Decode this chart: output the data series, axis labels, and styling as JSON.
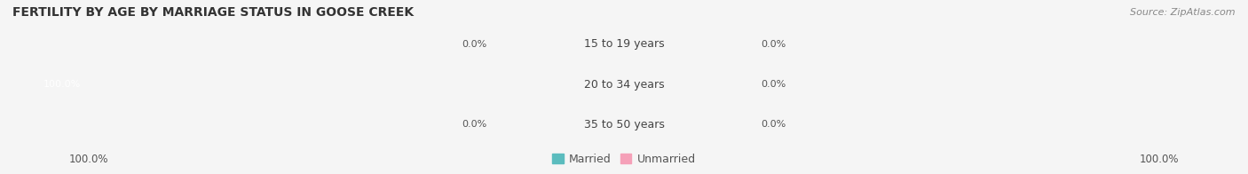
{
  "title": "FERTILITY BY AGE BY MARRIAGE STATUS IN GOOSE CREEK",
  "source": "Source: ZipAtlas.com",
  "bg_color": "#f5f5f5",
  "bar_track_color": "#e8e8e8",
  "married_color": "#5bbcbe",
  "unmarried_color": "#f5a0b8",
  "label_bg_color": "#ffffff",
  "rows": [
    {
      "label": "15 to 19 years",
      "married": 0.0,
      "unmarried": 0.0
    },
    {
      "label": "20 to 34 years",
      "married": 100.0,
      "unmarried": 0.0
    },
    {
      "label": "35 to 50 years",
      "married": 0.0,
      "unmarried": 0.0
    }
  ],
  "left_axis_label": "100.0%",
  "right_axis_label": "100.0%",
  "legend_married": "Married",
  "legend_unmarried": "Unmarried",
  "figsize": [
    14.06,
    1.96
  ],
  "dpi": 100
}
